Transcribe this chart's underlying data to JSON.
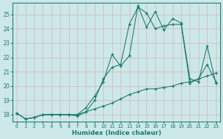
{
  "xlabel": "Humidex (Indice chaleur)",
  "xlim": [
    -0.5,
    23.5
  ],
  "ylim": [
    17.5,
    25.8
  ],
  "yticks": [
    18,
    19,
    20,
    21,
    22,
    23,
    24,
    25
  ],
  "xticks": [
    0,
    1,
    2,
    3,
    4,
    5,
    6,
    7,
    8,
    9,
    10,
    11,
    12,
    13,
    14,
    15,
    16,
    17,
    18,
    19,
    20,
    21,
    22,
    23
  ],
  "bg_color": "#cce8e8",
  "grid_color": "#aad4d4",
  "line_color": "#1a7a6e",
  "line1_x": [
    0,
    1,
    2,
    3,
    4,
    5,
    6,
    7,
    8,
    9,
    10,
    11,
    12,
    13,
    14,
    15,
    16,
    17,
    18,
    19,
    20,
    21,
    22,
    23
  ],
  "line1_y": [
    18.1,
    17.7,
    17.8,
    18.0,
    18.0,
    18.0,
    18.0,
    18.0,
    18.5,
    19.3,
    20.3,
    22.2,
    21.4,
    22.1,
    25.6,
    24.1,
    25.2,
    23.9,
    24.7,
    24.4,
    20.5,
    20.3,
    22.8,
    20.2
  ],
  "line2_x": [
    0,
    1,
    2,
    3,
    4,
    5,
    6,
    7,
    8,
    9,
    10,
    11,
    12,
    13,
    14,
    15,
    16,
    17,
    18,
    19,
    20,
    21,
    22,
    23
  ],
  "line2_y": [
    18.1,
    17.7,
    17.8,
    18.0,
    18.0,
    18.0,
    18.0,
    18.0,
    18.2,
    19.0,
    20.5,
    21.3,
    21.5,
    24.3,
    25.5,
    25.1,
    24.0,
    24.2,
    24.3,
    24.3,
    20.2,
    20.5,
    21.5,
    20.3
  ],
  "line3_x": [
    0,
    1,
    2,
    3,
    4,
    5,
    6,
    7,
    8,
    9,
    10,
    11,
    12,
    13,
    14,
    15,
    16,
    17,
    18,
    19,
    20,
    21,
    22,
    23
  ],
  "line3_y": [
    18.1,
    17.7,
    17.8,
    18.0,
    18.0,
    18.0,
    18.0,
    17.9,
    18.2,
    18.4,
    18.6,
    18.8,
    19.1,
    19.4,
    19.6,
    19.8,
    19.8,
    19.9,
    20.0,
    20.2,
    20.3,
    20.5,
    20.7,
    20.9
  ]
}
